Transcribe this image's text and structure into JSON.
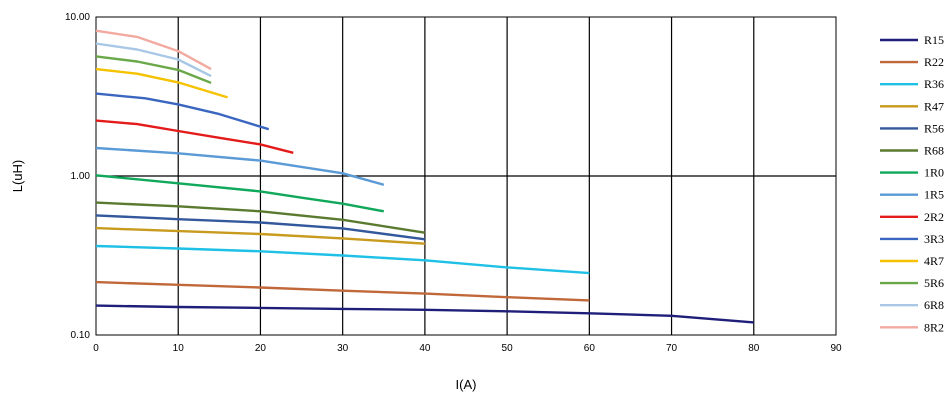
{
  "chart_data": {
    "type": "line",
    "title": "",
    "xlabel": "I(A)",
    "ylabel": "L(uH)",
    "xlim": [
      0,
      90
    ],
    "ylim": [
      0.1,
      10
    ],
    "yscale": "log",
    "grid": true,
    "legend_position": "right",
    "x_ticks": [
      "0",
      "10",
      "20",
      "30",
      "40",
      "50",
      "60",
      "70",
      "80",
      "90"
    ],
    "y_ticks": [
      {
        "value": 10,
        "label": "10.00"
      },
      {
        "value": 1,
        "label": "1.00"
      },
      {
        "value": 0.1,
        "label": "0.10"
      }
    ],
    "series": [
      {
        "name": "R15",
        "color": "#1f1f7a",
        "points": [
          [
            0,
            0.153
          ],
          [
            10,
            0.15
          ],
          [
            20,
            0.148
          ],
          [
            30,
            0.146
          ],
          [
            40,
            0.144
          ],
          [
            50,
            0.141
          ],
          [
            60,
            0.137
          ],
          [
            70,
            0.132
          ],
          [
            80,
            0.12
          ]
        ]
      },
      {
        "name": "R22",
        "color": "#c0683a",
        "points": [
          [
            0,
            0.215
          ],
          [
            10,
            0.207
          ],
          [
            20,
            0.199
          ],
          [
            30,
            0.19
          ],
          [
            40,
            0.182
          ],
          [
            50,
            0.173
          ],
          [
            60,
            0.165
          ]
        ]
      },
      {
        "name": "R36",
        "color": "#1ec0e6",
        "points": [
          [
            0,
            0.363
          ],
          [
            10,
            0.35
          ],
          [
            20,
            0.336
          ],
          [
            30,
            0.316
          ],
          [
            40,
            0.295
          ],
          [
            50,
            0.266
          ],
          [
            60,
            0.245
          ]
        ]
      },
      {
        "name": "R47",
        "color": "#c89a1e",
        "points": [
          [
            0,
            0.47
          ],
          [
            10,
            0.45
          ],
          [
            20,
            0.432
          ],
          [
            30,
            0.405
          ],
          [
            40,
            0.375
          ]
        ]
      },
      {
        "name": "R56",
        "color": "#34589c",
        "points": [
          [
            0,
            0.565
          ],
          [
            10,
            0.535
          ],
          [
            20,
            0.51
          ],
          [
            30,
            0.468
          ],
          [
            40,
            0.4
          ]
        ]
      },
      {
        "name": "R68",
        "color": "#5a7a30",
        "points": [
          [
            0,
            0.68
          ],
          [
            10,
            0.645
          ],
          [
            20,
            0.6
          ],
          [
            30,
            0.53
          ],
          [
            40,
            0.44
          ]
        ]
      },
      {
        "name": "1R0",
        "color": "#10a85a",
        "points": [
          [
            0,
            1.01
          ],
          [
            10,
            0.9
          ],
          [
            20,
            0.8
          ],
          [
            25,
            0.73
          ],
          [
            30,
            0.67
          ],
          [
            35,
            0.6
          ]
        ]
      },
      {
        "name": "1R5",
        "color": "#5a9ad6",
        "points": [
          [
            0,
            1.5
          ],
          [
            10,
            1.39
          ],
          [
            20,
            1.25
          ],
          [
            30,
            1.04
          ],
          [
            35,
            0.88
          ]
        ]
      },
      {
        "name": "2R2",
        "color": "#e41b1b",
        "points": [
          [
            0,
            2.23
          ],
          [
            5,
            2.12
          ],
          [
            10,
            1.92
          ],
          [
            15,
            1.74
          ],
          [
            20,
            1.58
          ],
          [
            24,
            1.4
          ]
        ]
      },
      {
        "name": "3R3",
        "color": "#3a66c0",
        "points": [
          [
            0,
            3.3
          ],
          [
            6,
            3.08
          ],
          [
            10,
            2.82
          ],
          [
            15,
            2.45
          ],
          [
            21,
            1.97
          ]
        ]
      },
      {
        "name": "4R7",
        "color": "#f5c200",
        "points": [
          [
            0,
            4.7
          ],
          [
            5,
            4.4
          ],
          [
            10,
            3.88
          ],
          [
            16,
            3.12
          ]
        ]
      },
      {
        "name": "5R6",
        "color": "#6aa84a",
        "points": [
          [
            0,
            5.65
          ],
          [
            5,
            5.25
          ],
          [
            10,
            4.65
          ],
          [
            14,
            3.85
          ]
        ]
      },
      {
        "name": "6R8",
        "color": "#a8c8e6",
        "points": [
          [
            0,
            6.8
          ],
          [
            5,
            6.25
          ],
          [
            10,
            5.4
          ],
          [
            14,
            4.25
          ]
        ]
      },
      {
        "name": "8R2",
        "color": "#f2aaa0",
        "points": [
          [
            0,
            8.2
          ],
          [
            5,
            7.5
          ],
          [
            10,
            6.1
          ],
          [
            14,
            4.7
          ]
        ]
      }
    ]
  }
}
